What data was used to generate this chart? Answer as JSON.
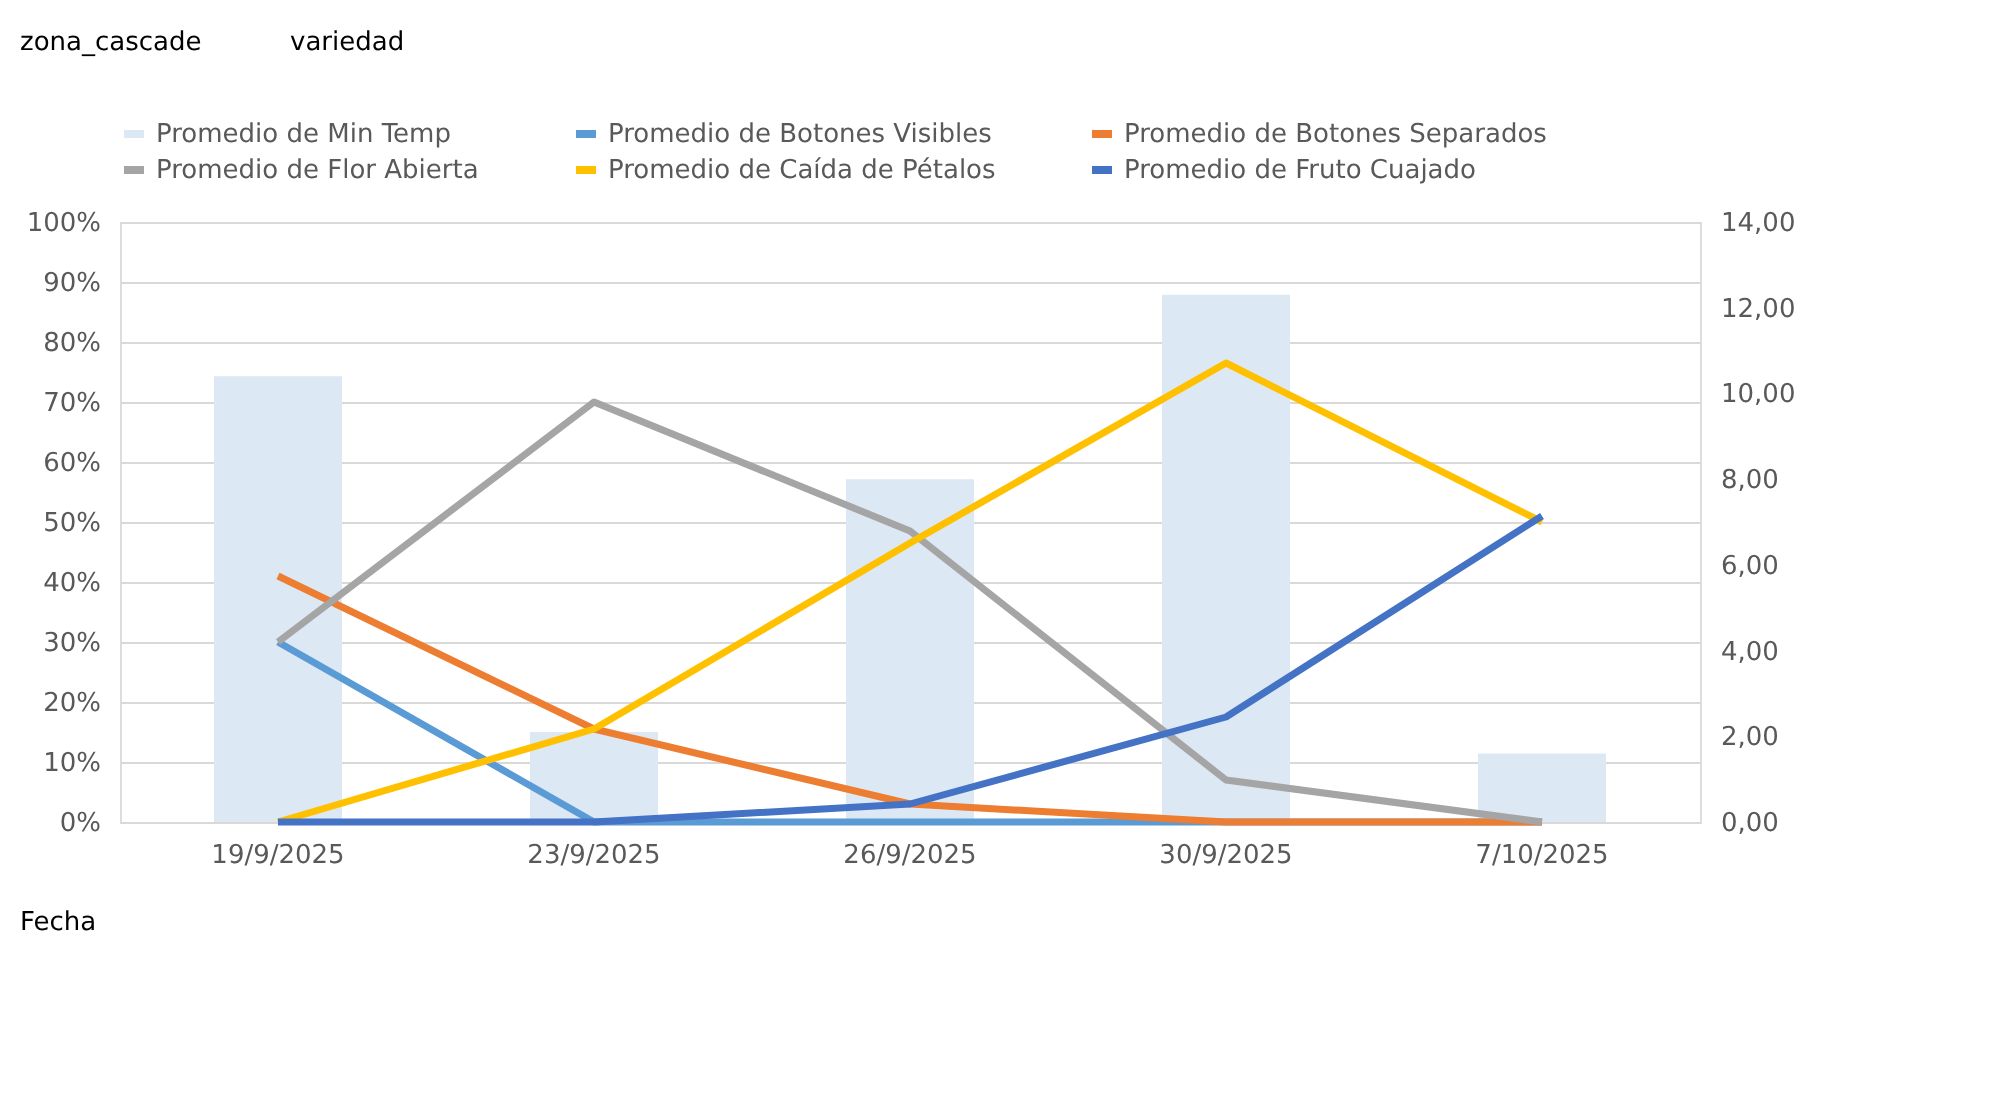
{
  "chart_data": {
    "type": "line",
    "categories": [
      "19/9/2025",
      "23/9/2025",
      "26/9/2025",
      "30/9/2025",
      "7/10/2025"
    ],
    "series": [
      {
        "name": "Promedio de Min Temp",
        "type": "bar",
        "axis": "y2",
        "color": "#dde8f5",
        "values": [
          10.4,
          2.1,
          8.0,
          12.3,
          1.6
        ]
      },
      {
        "name": "Promedio de Botones Visibles",
        "color": "#5b9bd5",
        "values": [
          30,
          0,
          0,
          0,
          0
        ]
      },
      {
        "name": "Promedio de Botones Separados",
        "color": "#ed7d31",
        "values": [
          41,
          15.5,
          3,
          0,
          0
        ]
      },
      {
        "name": "Promedio de Flor Abierta",
        "color": "#a5a5a5",
        "values": [
          30,
          70,
          48.5,
          7,
          0
        ]
      },
      {
        "name": "Promedio de Caída de Pétalos",
        "color": "#ffc000",
        "values": [
          0,
          15.5,
          46.5,
          76.5,
          50
        ]
      },
      {
        "name": "Promedio de Fruto Cuajado",
        "color": "#4472c4",
        "values": [
          0,
          0,
          3,
          17.5,
          51
        ]
      }
    ],
    "ylim": [
      0,
      100
    ],
    "yticks": [
      {
        "value": 0,
        "label": "0%"
      },
      {
        "value": 10,
        "label": "10%"
      },
      {
        "value": 20,
        "label": "20%"
      },
      {
        "value": 30,
        "label": "30%"
      },
      {
        "value": 40,
        "label": "40%"
      },
      {
        "value": 50,
        "label": "50%"
      },
      {
        "value": 60,
        "label": "60%"
      },
      {
        "value": 70,
        "label": "70%"
      },
      {
        "value": 80,
        "label": "80%"
      },
      {
        "value": 90,
        "label": "90%"
      },
      {
        "value": 100,
        "label": "100%"
      }
    ],
    "y2lim": [
      0,
      14
    ],
    "y2ticks": [
      {
        "value": 0,
        "label": "0,00"
      },
      {
        "value": 2,
        "label": "2,00"
      },
      {
        "value": 4,
        "label": "4,00"
      },
      {
        "value": 6,
        "label": "6,00"
      },
      {
        "value": 8,
        "label": "8,00"
      },
      {
        "value": 10,
        "label": "10,00"
      },
      {
        "value": 12,
        "label": "12,00"
      },
      {
        "value": 14,
        "label": "14,00"
      }
    ],
    "grid": "y",
    "legend": "top",
    "line_style": "solid",
    "marker": "none",
    "annotations": [
      "zona_cascade",
      "variedad",
      "Fecha"
    ]
  }
}
